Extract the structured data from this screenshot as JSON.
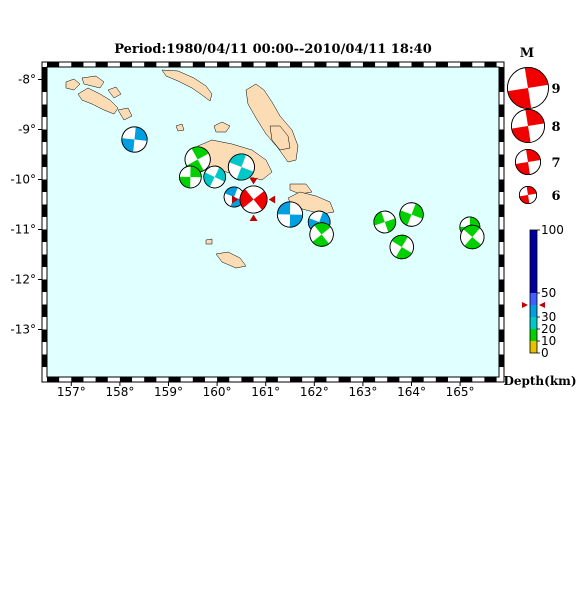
{
  "title": "Period:1980/04/11 00:00--2010/04/11 18:40",
  "colors": {
    "ocean": "#e0ffff",
    "land": "#fbdcb4",
    "shallow": "#00d000",
    "mid": "#00a0e0",
    "mid2": "#00c8c8",
    "deep": "#f00000",
    "marker": "#c00000"
  },
  "axes": {
    "lon_labels": [
      "157°",
      "158°",
      "159°",
      "160°",
      "161°",
      "162°",
      "163°",
      "164°",
      "165°"
    ],
    "lon_values": [
      157,
      158,
      159,
      160,
      161,
      162,
      163,
      164,
      165
    ],
    "lat_labels": [
      "-8°",
      "-9°",
      "-10°",
      "-11°",
      "-12°",
      "-13°"
    ],
    "lat_values": [
      -8,
      -9,
      -10,
      -11,
      -12,
      -13
    ],
    "lon_range": [
      156.5,
      165.8
    ],
    "lat_range": [
      -7.75,
      -13.95
    ]
  },
  "magnitude_legend": {
    "header": "M",
    "items": [
      {
        "label": "9",
        "mag": 9
      },
      {
        "label": "8",
        "mag": 8
      },
      {
        "label": "7",
        "mag": 7
      },
      {
        "label": "6",
        "mag": 6
      }
    ]
  },
  "depth_scale": {
    "labels": [
      "100",
      "50",
      "30",
      "20",
      "10",
      "0"
    ],
    "values": [
      100,
      50,
      30,
      20,
      10,
      0
    ],
    "unit_label": "Depth(km)",
    "marker_depth": 40
  },
  "events": [
    {
      "lon": 158.3,
      "lat": -9.2,
      "color": "mid",
      "mag": 7.2,
      "rot": 15
    },
    {
      "lon": 159.6,
      "lat": -9.6,
      "color": "shallow",
      "mag": 7.2,
      "rot": -20
    },
    {
      "lon": 159.45,
      "lat": -9.95,
      "color": "shallow",
      "mag": 6.8,
      "rot": 10
    },
    {
      "lon": 159.95,
      "lat": -9.95,
      "color": "mid2",
      "mag": 6.8,
      "rot": 35
    },
    {
      "lon": 160.5,
      "lat": -9.75,
      "color": "mid2",
      "mag": 7.3,
      "rot": 120
    },
    {
      "lon": 160.35,
      "lat": -10.35,
      "color": "mid",
      "mag": 6.6,
      "rot": -60
    },
    {
      "lon": 160.75,
      "lat": -10.4,
      "color": "deep",
      "mag": 7.4,
      "rot": 60
    },
    {
      "lon": 161.5,
      "lat": -10.7,
      "color": "mid",
      "mag": 7.2,
      "rot": 100
    },
    {
      "lon": 162.1,
      "lat": -10.85,
      "color": "mid",
      "mag": 6.8,
      "rot": 30
    },
    {
      "lon": 162.15,
      "lat": -11.1,
      "color": "shallow",
      "mag": 7.0,
      "rot": -30
    },
    {
      "lon": 163.45,
      "lat": -10.85,
      "color": "shallow",
      "mag": 6.8,
      "rot": 80
    },
    {
      "lon": 164.0,
      "lat": -10.7,
      "color": "shallow",
      "mag": 7.0,
      "rot": 30
    },
    {
      "lon": 163.8,
      "lat": -11.35,
      "color": "shallow",
      "mag": 7.0,
      "rot": -50
    },
    {
      "lon": 165.2,
      "lat": -10.95,
      "color": "shallow",
      "mag": 6.6,
      "rot": 10
    },
    {
      "lon": 165.25,
      "lat": -11.15,
      "color": "shallow",
      "mag": 7.0,
      "rot": -40
    }
  ]
}
